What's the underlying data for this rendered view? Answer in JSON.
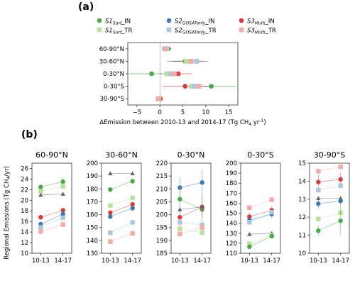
{
  "colors": {
    "S1": "#4aa84a",
    "S1_TR": "#b9e29e",
    "S2": "#3b7bb0",
    "S2_TR": "#aac6e0",
    "S3": "#d93a3a",
    "S3_TR": "#f5aaa8",
    "triangle": "#666666"
  },
  "chart_data": [
    {
      "type": "scatter",
      "panel_label": "(a)",
      "xlabel_parts": [
        "ΔEmission between 2010-13 and 2014-17 (Tg CH",
        "4",
        " yr",
        "-1",
        ")"
      ],
      "xticks": [
        "−5",
        "0",
        "5",
        "10",
        "15"
      ],
      "xlim": [
        -7,
        17
      ],
      "categories": [
        "60-90°N",
        "30-60°N",
        "0-30°N",
        "0-30°S",
        "30-90°S"
      ],
      "legend": [
        {
          "main": "S1",
          "sub": "Surf",
          "suffix": "_IN",
          "marker": "circle",
          "color_key": "S1"
        },
        {
          "main": "S2",
          "sub": "GOSATonly",
          "suffix": "_IN",
          "marker": "circle",
          "color_key": "S2"
        },
        {
          "main": "S3",
          "sub": "Multi",
          "suffix": "_IN",
          "marker": "circle",
          "color_key": "S3"
        },
        {
          "main": "S1",
          "sub": "Surf",
          "suffix": "_TR",
          "marker": "square",
          "color_key": "S1_TR"
        },
        {
          "main": "S2",
          "sub": "GOSATonly",
          "suffix": "_TR",
          "marker": "square",
          "color_key": "S2_TR"
        },
        {
          "main": "S3",
          "sub": "Multi",
          "suffix": "_TR",
          "marker": "square",
          "color_key": "S3_TR"
        }
      ],
      "series": [
        {
          "key": "S1_IN",
          "marker": "circle",
          "color_key": "S1",
          "values": [
            1.0,
            5.5,
            -1.8,
            11.2,
            -0.3
          ],
          "err": [
            0.5,
            4.0,
            5.0,
            5.5,
            0.3
          ]
        },
        {
          "key": "S2_IN",
          "marker": "circle",
          "color_key": "S2",
          "values": [
            1.8,
            6.0,
            2.0,
            8.0,
            -0.2
          ],
          "err": [
            0.8,
            3.0,
            2.0,
            3.0,
            0.3
          ]
        },
        {
          "key": "S3_IN",
          "marker": "circle",
          "color_key": "S3",
          "values": [
            1.3,
            6.5,
            4.0,
            5.5,
            0.1
          ],
          "err": [
            0.6,
            4.0,
            3.0,
            5.0,
            0.2
          ]
        },
        {
          "key": "S1_TR",
          "marker": "square",
          "color_key": "S1_TR",
          "values": [
            1.5,
            5.8,
            1.5,
            6.8,
            -0.3
          ],
          "err": [
            0.3,
            1.0,
            1.0,
            1.0,
            0.2
          ]
        },
        {
          "key": "S2_TR",
          "marker": "square",
          "color_key": "S2_TR",
          "values": [
            1.0,
            8.0,
            2.4,
            7.5,
            -0.4
          ],
          "err": [
            0.3,
            1.0,
            1.0,
            1.0,
            0.2
          ]
        },
        {
          "key": "S3_TR",
          "marker": "square",
          "color_key": "S3_TR",
          "values": [
            1.2,
            6.8,
            3.1,
            8.5,
            -0.2
          ],
          "err": [
            0.3,
            1.0,
            1.0,
            1.0,
            0.2
          ]
        }
      ]
    },
    {
      "type": "line",
      "panel_label": "(b)",
      "ylabel_parts": [
        "Regional Emissions (Tg CH",
        "4",
        "/yr)"
      ],
      "categories": [
        "10-13",
        "14-17"
      ],
      "panels": [
        {
          "title": "60-90°N",
          "ylim": [
            10,
            27
          ],
          "yticks": [
            10,
            12,
            14,
            16,
            18,
            20,
            22,
            24,
            26
          ],
          "series": [
            {
              "key": "S1_IN",
              "marker": "circle",
              "color_key": "S1",
              "values": [
                22.5,
                23.5
              ],
              "err": [
                0.3,
                0.8
              ]
            },
            {
              "key": "S1_TR",
              "marker": "square",
              "color_key": "S1_TR",
              "values": [
                21.7,
                22.6
              ],
              "err": [
                0.1,
                0.1
              ]
            },
            {
              "key": "prior",
              "marker": "triangle",
              "color_key": "triangle",
              "values": [
                21.0,
                21.2
              ],
              "err": [
                0,
                0
              ]
            },
            {
              "key": "S3_IN",
              "marker": "circle",
              "color_key": "S3",
              "values": [
                16.8,
                18.1
              ],
              "err": [
                0.4,
                0.4
              ]
            },
            {
              "key": "S2_IN",
              "marker": "circle",
              "color_key": "S2",
              "values": [
                15.5,
                17.4
              ],
              "err": [
                0.4,
                0.4
              ]
            },
            {
              "key": "S2_TR",
              "marker": "square",
              "color_key": "S2_TR",
              "values": [
                14.9,
                16.7
              ],
              "err": [
                0.1,
                0.1
              ]
            },
            {
              "key": "S3_TR",
              "marker": "square",
              "color_key": "S3_TR",
              "values": [
                14.1,
                15.4
              ],
              "err": [
                0.1,
                0.1
              ]
            }
          ]
        },
        {
          "title": "30-60°N",
          "ylim": [
            130,
            200
          ],
          "yticks": [
            130,
            140,
            150,
            160,
            170,
            180,
            190,
            200
          ],
          "series": [
            {
              "key": "prior",
              "marker": "triangle",
              "color_key": "triangle",
              "values": [
                192,
                192
              ],
              "err": [
                0,
                0
              ]
            },
            {
              "key": "S1_IN",
              "marker": "circle",
              "color_key": "S1",
              "values": [
                179.5,
                186
              ],
              "err": [
                2,
                2
              ]
            },
            {
              "key": "S1_TR",
              "marker": "square",
              "color_key": "S1_TR",
              "values": [
                167,
                173
              ],
              "err": [
                1,
                1
              ]
            },
            {
              "key": "S3_IN",
              "marker": "circle",
              "color_key": "S3",
              "values": [
                161.5,
                168
              ],
              "err": [
                2,
                2
              ]
            },
            {
              "key": "S2_IN",
              "marker": "circle",
              "color_key": "S2",
              "values": [
                158.5,
                165
              ],
              "err": [
                2,
                2
              ]
            },
            {
              "key": "S2_TR",
              "marker": "square",
              "color_key": "S2_TR",
              "values": [
                146,
                154
              ],
              "err": [
                1,
                1
              ]
            },
            {
              "key": "S3_TR",
              "marker": "square",
              "color_key": "S3_TR",
              "values": [
                139,
                145.5
              ],
              "err": [
                1,
                1
              ]
            }
          ]
        },
        {
          "title": "0-30°N",
          "ylim": [
            185,
            220
          ],
          "yticks": [
            185,
            190,
            195,
            200,
            205,
            210,
            215,
            220
          ],
          "series": [
            {
              "key": "S2_IN",
              "marker": "circle",
              "color_key": "S2",
              "values": [
                210.5,
                212.5
              ],
              "err": [
                4,
                5
              ]
            },
            {
              "key": "S1_IN",
              "marker": "circle",
              "color_key": "S1",
              "values": [
                206,
                202
              ],
              "err": [
                5,
                6
              ]
            },
            {
              "key": "S3_IN",
              "marker": "circle",
              "color_key": "S3",
              "values": [
                199,
                203
              ],
              "err": [
                4,
                4
              ]
            },
            {
              "key": "prior",
              "marker": "triangle",
              "color_key": "triangle",
              "values": [
                202,
                203
              ],
              "err": [
                0,
                0
              ]
            },
            {
              "key": "S2_TR",
              "marker": "square",
              "color_key": "S2_TR",
              "values": [
                197,
                196
              ],
              "err": [
                1,
                1
              ]
            },
            {
              "key": "S1_TR",
              "marker": "square",
              "color_key": "S1_TR",
              "values": [
                194.5,
                193
              ],
              "err": [
                1,
                1
              ]
            },
            {
              "key": "S3_TR",
              "marker": "square",
              "color_key": "S3_TR",
              "values": [
                192.5,
                195
              ],
              "err": [
                1,
                1
              ]
            }
          ]
        },
        {
          "title": "0-30°S",
          "ylim": [
            110,
            200
          ],
          "yticks": [
            110,
            120,
            130,
            140,
            150,
            160,
            170,
            180,
            190,
            200
          ],
          "series": [
            {
              "key": "S3_TR",
              "marker": "square",
              "color_key": "S3_TR",
              "values": [
                155.5,
                163.5
              ],
              "err": [
                1,
                1
              ]
            },
            {
              "key": "S3_IN",
              "marker": "circle",
              "color_key": "S3",
              "values": [
                146.5,
                153
              ],
              "err": [
                4,
                4
              ]
            },
            {
              "key": "S2_IN",
              "marker": "circle",
              "color_key": "S2",
              "values": [
                143,
                149
              ],
              "err": [
                4,
                4
              ]
            },
            {
              "key": "S2_TR",
              "marker": "square",
              "color_key": "S2_TR",
              "values": [
                141,
                151
              ],
              "err": [
                1,
                1
              ]
            },
            {
              "key": "prior",
              "marker": "triangle",
              "color_key": "triangle",
              "values": [
                129,
                130
              ],
              "err": [
                0,
                0
              ]
            },
            {
              "key": "S1_TR",
              "marker": "square",
              "color_key": "S1_TR",
              "values": [
                119.5,
                128
              ],
              "err": [
                1,
                1
              ]
            },
            {
              "key": "S1_IN",
              "marker": "circle",
              "color_key": "S1",
              "values": [
                116.5,
                127
              ],
              "err": [
                2,
                2
              ]
            }
          ]
        },
        {
          "title": "30-90°S",
          "ylim": [
            10,
            15
          ],
          "yticks": [
            10,
            11,
            12,
            13,
            14,
            15
          ],
          "series": [
            {
              "key": "S3_TR",
              "marker": "square",
              "color_key": "S3_TR",
              "values": [
                14.55,
                14.8
              ],
              "err": [
                0.03,
                0.03
              ]
            },
            {
              "key": "S3_IN",
              "marker": "circle",
              "color_key": "S3",
              "values": [
                13.95,
                14.1
              ],
              "err": [
                0.4,
                0.4
              ]
            },
            {
              "key": "S2_TR",
              "marker": "square",
              "color_key": "S2_TR",
              "values": [
                13.5,
                13.75
              ],
              "err": [
                0.03,
                0.03
              ]
            },
            {
              "key": "prior",
              "marker": "triangle",
              "color_key": "triangle",
              "values": [
                13.05,
                13.05
              ],
              "err": [
                0,
                0
              ]
            },
            {
              "key": "S2_IN",
              "marker": "circle",
              "color_key": "S2",
              "values": [
                12.75,
                12.9
              ],
              "err": [
                0.3,
                0.3
              ]
            },
            {
              "key": "S1_TR",
              "marker": "square",
              "color_key": "S1_TR",
              "values": [
                11.9,
                12.25
              ],
              "err": [
                0.03,
                0.03
              ]
            },
            {
              "key": "S1_IN",
              "marker": "circle",
              "color_key": "S1",
              "values": [
                11.25,
                11.8
              ],
              "err": [
                0.3,
                0.8
              ]
            }
          ]
        }
      ]
    }
  ]
}
